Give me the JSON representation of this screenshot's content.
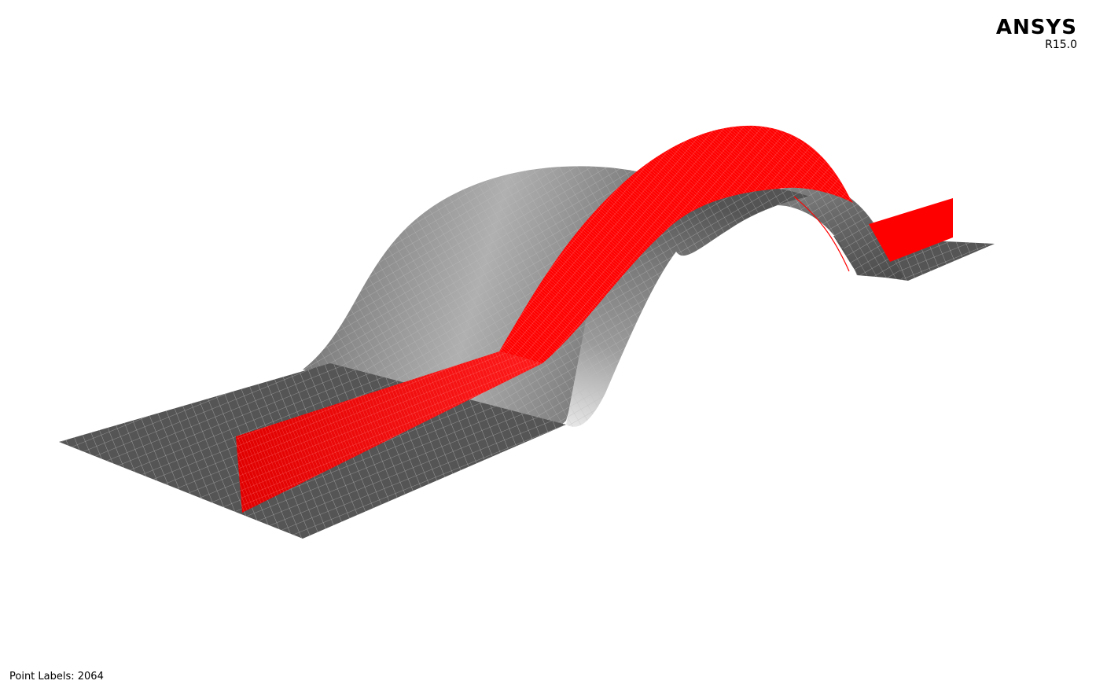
{
  "logo": {
    "name": "ANSYS",
    "version": "R15.0"
  },
  "status": {
    "point_labels": "Point Labels: 2064"
  },
  "model": {
    "shell_color": "#5a5a5a",
    "shell_highlight": "#d9d9d9",
    "mesh_line_color": "#c8c8c8",
    "stiffener_color": "#ff0000",
    "stiffener_mesh_color": "#ff6a6a"
  }
}
